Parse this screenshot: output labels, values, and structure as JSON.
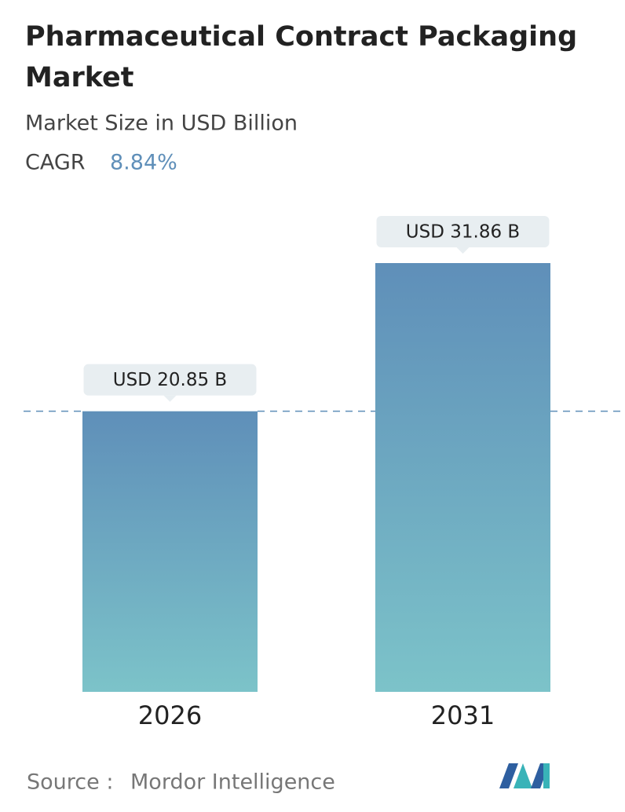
{
  "chart_data": {
    "type": "bar",
    "title": "Pharmaceutical Contract Packaging Market",
    "subtitle": "Market Size in USD Billion",
    "cagr_label": "CAGR",
    "cagr": "8.84%",
    "categories": [
      "2026",
      "2031"
    ],
    "values": [
      20.85,
      31.86
    ],
    "value_labels": [
      "USD 20.85 B",
      "USD 31.86 B"
    ],
    "gradient": [
      "#5f8fb9",
      "#7cc3c9"
    ],
    "source_label": "Source :",
    "source": "Mordor Intelligence"
  }
}
